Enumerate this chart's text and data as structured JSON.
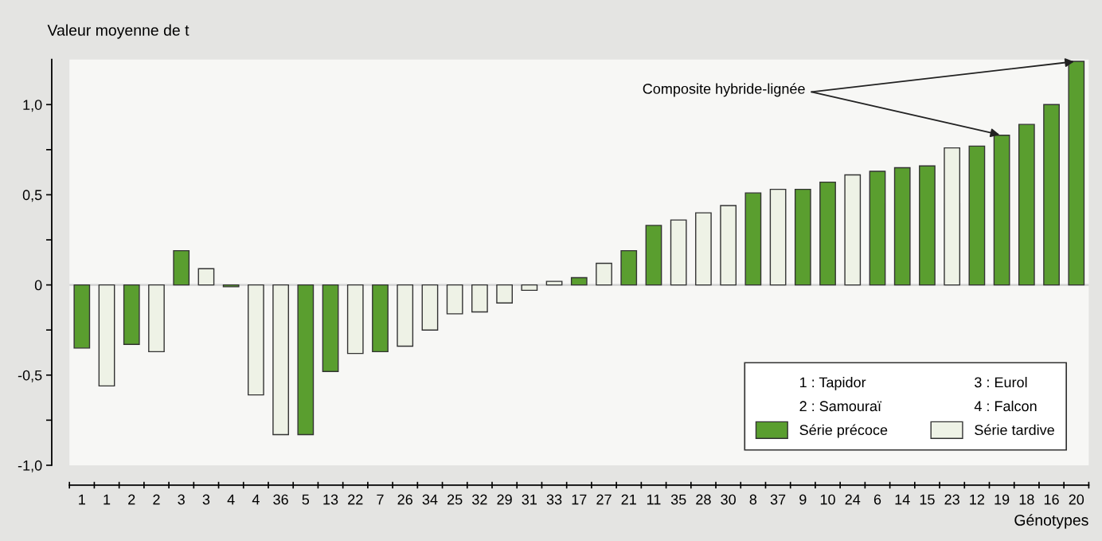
{
  "chart_data": {
    "type": "bar",
    "xlabel": "Génotypes",
    "ylabel": "Valeur moyenne de t",
    "categories": [
      "1",
      "1",
      "2",
      "2",
      "3",
      "3",
      "4",
      "4",
      "36",
      "5",
      "13",
      "22",
      "7",
      "26",
      "34",
      "25",
      "32",
      "29",
      "31",
      "33",
      "17",
      "27",
      "21",
      "11",
      "35",
      "28",
      "30",
      "8",
      "37",
      "9",
      "10",
      "24",
      "6",
      "14",
      "15",
      "23",
      "12",
      "19",
      "18",
      "16",
      "20"
    ],
    "series": [
      {
        "name": "Série précoce",
        "color": "#5a9e2f",
        "values": [
          -0.35,
          null,
          -0.33,
          null,
          0.19,
          null,
          -0.01,
          null,
          null,
          -0.83,
          -0.48,
          null,
          -0.37,
          null,
          null,
          null,
          null,
          null,
          null,
          null,
          0.04,
          null,
          0.19,
          0.33,
          null,
          null,
          null,
          0.51,
          null,
          0.53,
          0.57,
          null,
          0.63,
          0.65,
          0.66,
          null,
          0.77,
          0.83,
          0.89,
          1.0,
          1.24
        ]
      },
      {
        "name": "Série tardive",
        "color": "#eef2e6",
        "values": [
          null,
          -0.56,
          null,
          -0.37,
          null,
          0.09,
          null,
          -0.61,
          -0.83,
          null,
          null,
          -0.38,
          null,
          -0.34,
          -0.25,
          -0.16,
          -0.15,
          -0.1,
          -0.03,
          0.02,
          null,
          0.12,
          null,
          null,
          0.36,
          0.4,
          0.44,
          null,
          0.53,
          null,
          null,
          0.61,
          null,
          null,
          null,
          0.76,
          null,
          null,
          null,
          null,
          null
        ]
      }
    ],
    "ylim": [
      -1.0,
      1.25
    ],
    "yticks": [
      {
        "value": -1.0,
        "label": "-1,0"
      },
      {
        "value": -0.5,
        "label": "-0,5"
      },
      0,
      {
        "value": 0.5,
        "label": "0,5"
      },
      {
        "value": 1.0,
        "label": "1,0"
      }
    ],
    "ref_lines": [
      {
        "axis": "y",
        "value": 0,
        "color": "#cfcfcf"
      }
    ],
    "annotations": [
      "1 : Tapidor",
      "2 : Samouraï",
      "3 : Eurol",
      "4 : Falcon",
      {
        "text": "Composite hybride-lignée",
        "x": "19",
        "y": 0.83
      }
    ],
    "legend": "bottom right",
    "grid": false
  }
}
